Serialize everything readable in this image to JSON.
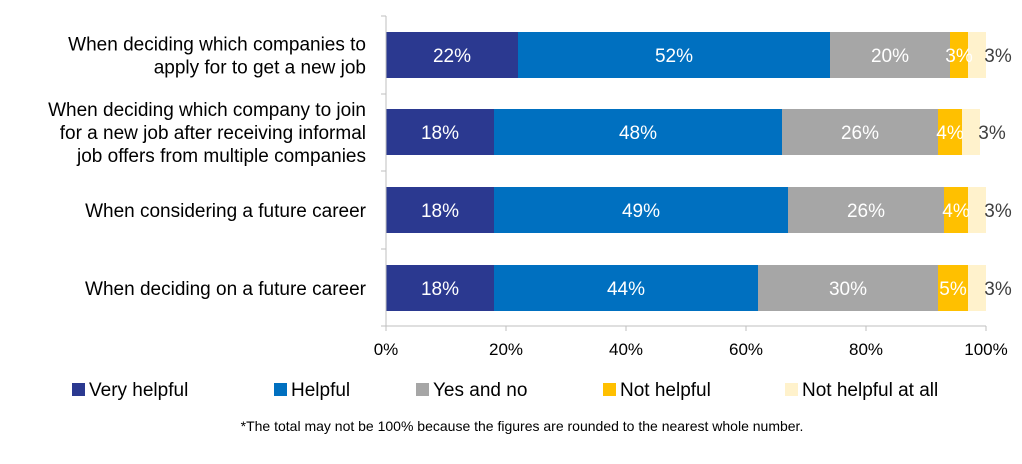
{
  "chart_data": {
    "type": "bar",
    "orientation": "horizontal",
    "stacked": true,
    "categories": [
      [
        "When deciding which companies to",
        "apply for to get a new job"
      ],
      [
        "When deciding which company to join",
        "for a new job after receiving informal",
        "job offers from multiple companies"
      ],
      [
        "When considering a future career"
      ],
      [
        "When deciding on a future career"
      ]
    ],
    "series": [
      {
        "name": "Very helpful",
        "color": "#2B3990",
        "values": [
          22,
          18,
          18,
          18
        ]
      },
      {
        "name": "Helpful",
        "color": "#0070C0",
        "values": [
          52,
          48,
          49,
          44
        ]
      },
      {
        "name": "Yes and no",
        "color": "#A6A6A6",
        "values": [
          20,
          26,
          26,
          30
        ]
      },
      {
        "name": "Not helpful",
        "color": "#FFC000",
        "values": [
          3,
          4,
          4,
          5
        ]
      },
      {
        "name": "Not helpful at all",
        "color": "#FFF2CC",
        "values": [
          3,
          3,
          3,
          3
        ]
      }
    ],
    "value_suffix": "%",
    "xlim": [
      0,
      100
    ],
    "x_ticks": [
      "0%",
      "20%",
      "40%",
      "60%",
      "80%",
      "100%"
    ],
    "grid": false,
    "legend_position": "bottom"
  },
  "footnote": "*The total may not be 100% because the figures are rounded to the nearest whole number."
}
